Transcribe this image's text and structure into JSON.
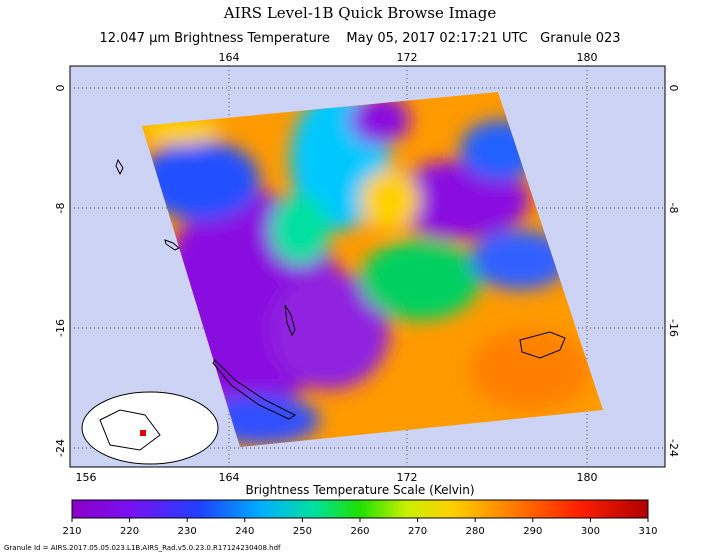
{
  "header": {
    "title": "AIRS Level-1B Quick Browse Image",
    "subtitle": "12.047 μm Brightness Temperature    May 05, 2017 02:17:21 UTC   Granule 023"
  },
  "map": {
    "top_lon_labels": [
      "164",
      "172",
      "180"
    ],
    "bottom_lon_labels": [
      "156",
      "164",
      "172",
      "180"
    ],
    "lat_labels": [
      "0",
      "-8",
      "-16",
      "-24"
    ]
  },
  "colorbar": {
    "label": "Brightness Temperature Scale (Kelvin)",
    "ticks": [
      "210",
      "220",
      "230",
      "240",
      "250",
      "260",
      "270",
      "280",
      "290",
      "300",
      "310"
    ]
  },
  "footer": {
    "granule_id": "Granule Id = AIRS.2017.05.05.023.L1B.AIRS_Rad.v5.0.23.0.R17124230408.hdf"
  }
}
